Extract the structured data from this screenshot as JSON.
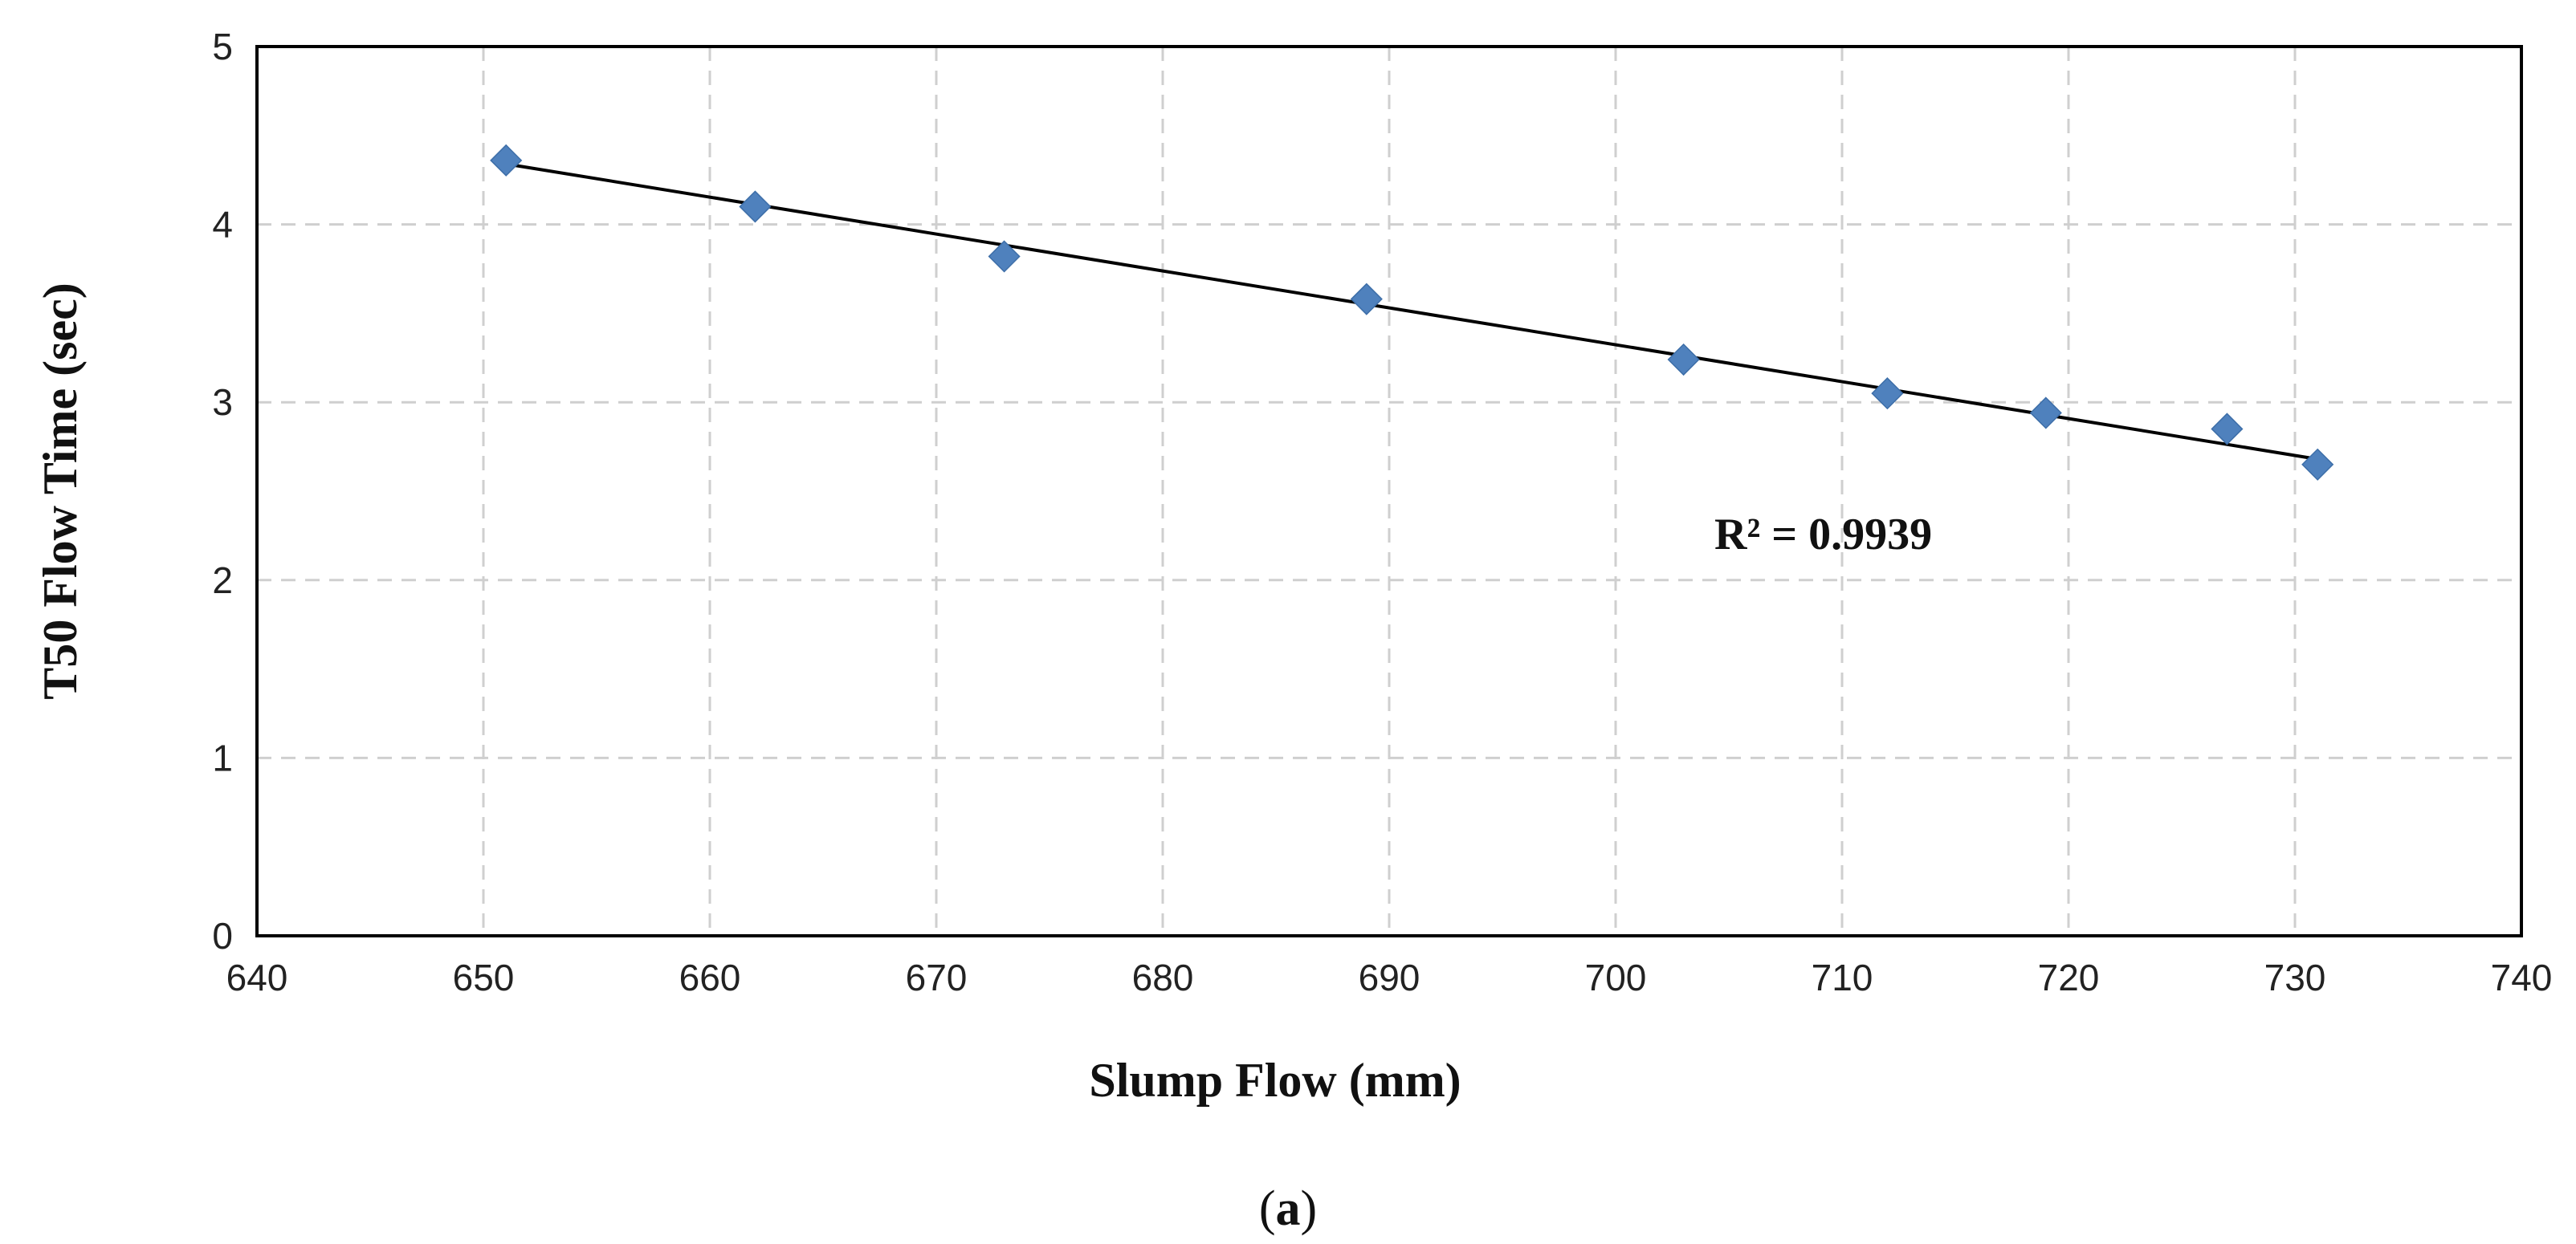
{
  "chart_data": {
    "type": "scatter",
    "title": "",
    "xlabel": "Slump Flow (mm)",
    "ylabel": "T50 Flow Time (sec)",
    "xlim": [
      640,
      740
    ],
    "ylim": [
      0,
      5
    ],
    "xticks": [
      640,
      650,
      660,
      670,
      680,
      690,
      700,
      710,
      720,
      730,
      740
    ],
    "yticks": [
      0,
      1,
      2,
      3,
      4,
      5
    ],
    "grid": true,
    "series": [
      {
        "name": "T50 Flow Time",
        "marker": "diamond",
        "color": "#4f81bd",
        "points": [
          {
            "x": 651,
            "y": 4.36
          },
          {
            "x": 662,
            "y": 4.1
          },
          {
            "x": 673,
            "y": 3.82
          },
          {
            "x": 689,
            "y": 3.58
          },
          {
            "x": 703,
            "y": 3.24
          },
          {
            "x": 712,
            "y": 3.05
          },
          {
            "x": 719,
            "y": 2.94
          },
          {
            "x": 727,
            "y": 2.85
          },
          {
            "x": 731,
            "y": 2.65
          }
        ]
      }
    ],
    "trendline": {
      "type": "linear",
      "start": {
        "x": 651,
        "y": 4.34
      },
      "end": {
        "x": 731,
        "y": 2.68
      },
      "r_squared_label": "R² = 0.9939"
    }
  },
  "caption": {
    "open": "(",
    "letter": "a",
    "close": ")"
  }
}
